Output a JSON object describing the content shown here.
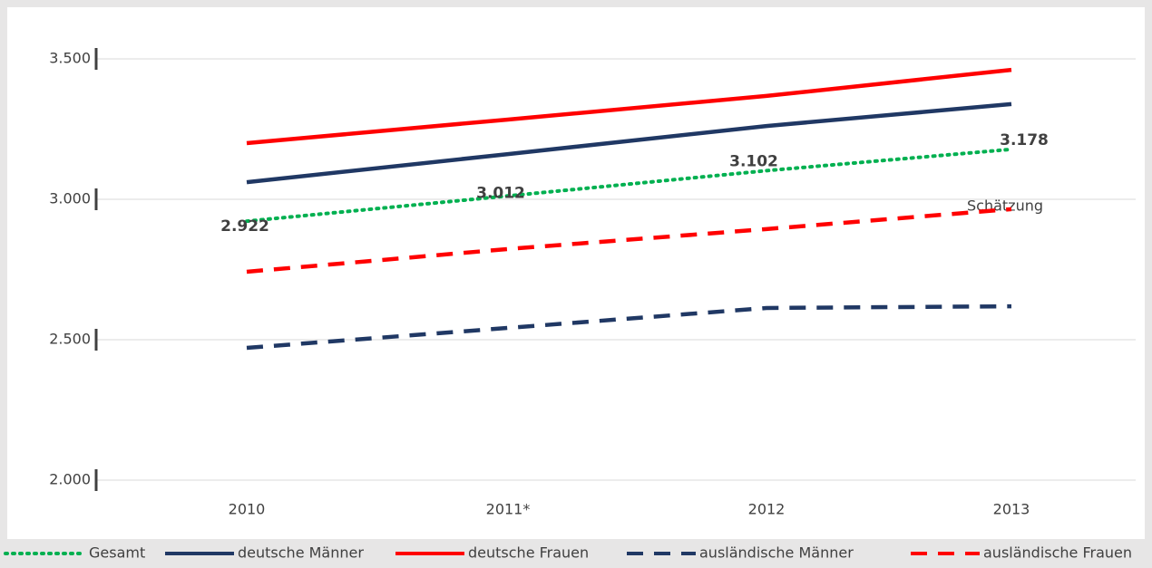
{
  "chart_data": {
    "type": "line",
    "categories": [
      "2010",
      "2011*",
      "2012",
      "2013"
    ],
    "series": [
      {
        "name": "Gesamt",
        "color": "#00b050",
        "style": "dotted",
        "values": [
          2922,
          3012,
          3102,
          3178
        ],
        "value_labels": [
          "2.922",
          "3.012",
          "3.102",
          "3.178"
        ]
      },
      {
        "name": "deutsche Männer",
        "color": "#203864",
        "style": "solid",
        "values": [
          3061,
          3161,
          3261,
          3339
        ]
      },
      {
        "name": "deutsche Frauen",
        "color": "#ff0000",
        "style": "solid",
        "values": [
          3200,
          3284,
          3368,
          3461
        ]
      },
      {
        "name": "ausländische Männer",
        "color": "#203864",
        "style": "dashed",
        "values": [
          2471,
          2542,
          2613,
          2619
        ]
      },
      {
        "name": "ausländische Frauen",
        "color": "#ff0000",
        "style": "dashed",
        "values": [
          2742,
          2823,
          2894,
          2965
        ]
      }
    ],
    "annotation": "Schätzung",
    "ylim": [
      2000,
      3500
    ],
    "yticks": [
      {
        "value": 2000,
        "label": "2.000"
      },
      {
        "value": 2500,
        "label": "2.500"
      },
      {
        "value": 3000,
        "label": "3.000"
      },
      {
        "value": 3500,
        "label": "3.500"
      }
    ],
    "grid": true,
    "legend": "bottom"
  }
}
